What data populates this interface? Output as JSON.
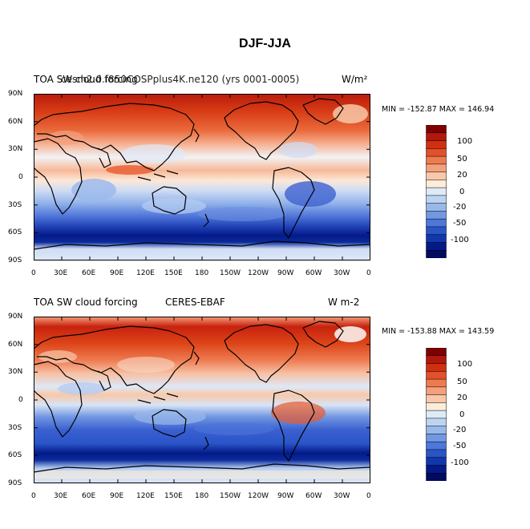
{
  "figure": {
    "title": "DJF-JJA",
    "panels": [
      {
        "id": "model",
        "left_label": "TOA SW cloud forcing",
        "center_label": "cesm2.0.f850COSPplus4K.ne120 (yrs 0001-0005)",
        "right_label": "W/m²",
        "min_max": "MIN = -152.87 MAX = 146.94"
      },
      {
        "id": "obs",
        "left_label": "TOA SW cloud forcing",
        "center_label": "CERES-EBAF",
        "right_label": "W m-2",
        "min_max": "MIN = -153.88 MAX = 143.59"
      }
    ],
    "lat_ticks": [
      "90N",
      "60N",
      "30N",
      "0",
      "30S",
      "60S",
      "90S"
    ],
    "lon_ticks": [
      "0",
      "30E",
      "60E",
      "90E",
      "120E",
      "150E",
      "180",
      "150W",
      "120W",
      "90W",
      "60W",
      "30W",
      "0"
    ],
    "colorbar": {
      "labels": [
        "100",
        "50",
        "20",
        "0",
        "-20",
        "-50",
        "-100"
      ],
      "colors": [
        "#7f0000",
        "#b2180b",
        "#d03010",
        "#e3502a",
        "#ee7a50",
        "#f4a07c",
        "#f8c8a8",
        "#fcecd8",
        "#ddeaf8",
        "#bcd4f0",
        "#98b8ea",
        "#7398e2",
        "#4d77d8",
        "#2a55c8",
        "#1237aa",
        "#031a88",
        "#010a5e"
      ]
    }
  },
  "colors": {
    "deep_red": "#7f0000",
    "red": "#d03010",
    "pale": "#fcecd8",
    "pale_blue": "#ddeaf8",
    "blue": "#4d77d8",
    "deep_blue": "#031a88"
  }
}
